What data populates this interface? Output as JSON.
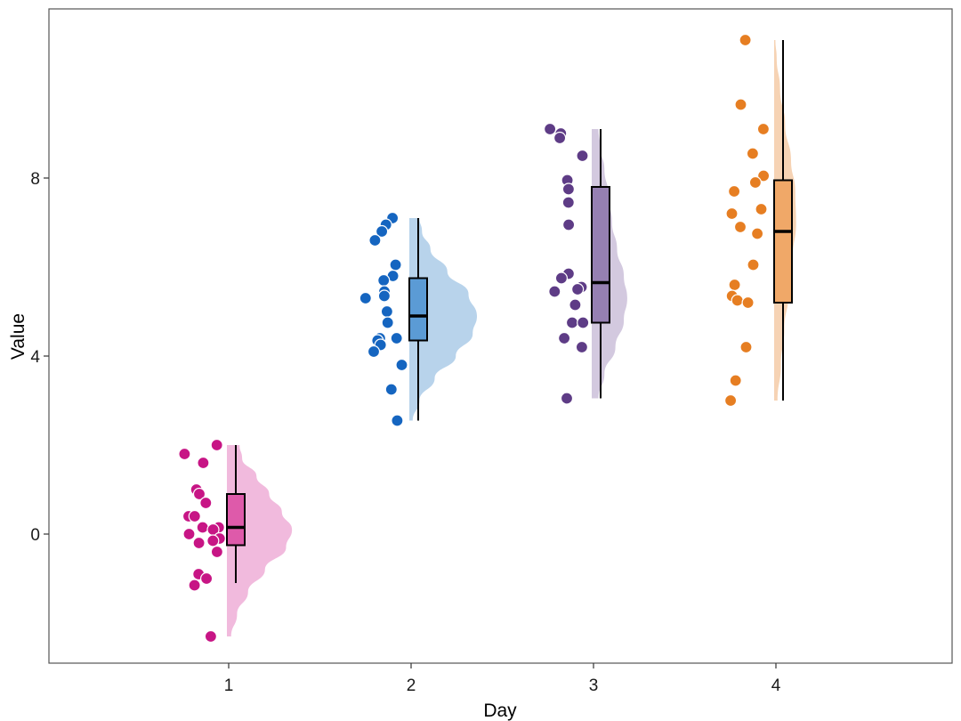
{
  "chart_data": {
    "type": "raincloud",
    "title": "",
    "xlabel": "Day",
    "ylabel": "Value",
    "ylim": [
      -2.9,
      11.8
    ],
    "yticks": [
      0,
      4,
      8
    ],
    "categories": [
      "1",
      "2",
      "3",
      "4"
    ],
    "grid": false,
    "series": [
      {
        "category": "1",
        "color": "#C71585",
        "box_fill": "#DE5AAA",
        "violin_fill": "#F1BADD",
        "box": {
          "min": -1.1,
          "q1": -0.25,
          "median": 0.15,
          "q3": 0.9,
          "max": 2.0
        },
        "points": [
          2.0,
          1.8,
          1.6,
          1.0,
          0.9,
          0.7,
          0.4,
          0.4,
          0.15,
          0.15,
          0.1,
          0.0,
          -0.1,
          -0.15,
          -0.2,
          -0.4,
          -0.9,
          -1.0,
          -1.15,
          -2.3
        ],
        "density": [
          {
            "y": -2.3,
            "w": 0.05
          },
          {
            "y": -1.8,
            "w": 0.12
          },
          {
            "y": -1.3,
            "w": 0.25
          },
          {
            "y": -0.8,
            "w": 0.45
          },
          {
            "y": -0.3,
            "w": 0.7
          },
          {
            "y": 0.1,
            "w": 0.77
          },
          {
            "y": 0.5,
            "w": 0.65
          },
          {
            "y": 0.9,
            "w": 0.5
          },
          {
            "y": 1.3,
            "w": 0.35
          },
          {
            "y": 1.7,
            "w": 0.18
          },
          {
            "y": 2.0,
            "w": 0.15
          }
        ]
      },
      {
        "category": "2",
        "color": "#1565C0",
        "box_fill": "#5B9BD5",
        "violin_fill": "#B8D3EB",
        "box": {
          "min": 2.55,
          "q1": 4.35,
          "median": 4.9,
          "q3": 5.75,
          "max": 7.1
        },
        "points": [
          7.1,
          6.95,
          6.8,
          6.6,
          6.05,
          5.8,
          5.7,
          5.45,
          5.35,
          5.3,
          5.0,
          4.75,
          4.4,
          4.4,
          4.35,
          4.25,
          4.1,
          3.8,
          3.25,
          2.55
        ],
        "density": [
          {
            "y": 2.55,
            "w": 0.04
          },
          {
            "y": 3.0,
            "w": 0.12
          },
          {
            "y": 3.5,
            "w": 0.3
          },
          {
            "y": 4.0,
            "w": 0.55
          },
          {
            "y": 4.5,
            "w": 0.75
          },
          {
            "y": 4.9,
            "w": 0.8
          },
          {
            "y": 5.4,
            "w": 0.7
          },
          {
            "y": 5.9,
            "w": 0.45
          },
          {
            "y": 6.4,
            "w": 0.25
          },
          {
            "y": 6.8,
            "w": 0.15
          },
          {
            "y": 7.1,
            "w": 0.12
          }
        ]
      },
      {
        "category": "3",
        "color": "#5E3C86",
        "box_fill": "#9680B2",
        "violin_fill": "#D3C9DF",
        "box": {
          "min": 3.05,
          "q1": 4.75,
          "median": 5.65,
          "q3": 7.8,
          "max": 9.1
        },
        "points": [
          9.1,
          9.0,
          8.9,
          8.5,
          7.95,
          7.75,
          7.45,
          6.95,
          5.85,
          5.75,
          5.55,
          5.5,
          5.45,
          5.15,
          4.75,
          4.75,
          4.4,
          4.2,
          3.05,
          3.05
        ],
        "density": [
          {
            "y": 3.05,
            "w": 0.08
          },
          {
            "y": 3.6,
            "w": 0.15
          },
          {
            "y": 4.2,
            "w": 0.28
          },
          {
            "y": 4.8,
            "w": 0.38
          },
          {
            "y": 5.3,
            "w": 0.42
          },
          {
            "y": 5.8,
            "w": 0.38
          },
          {
            "y": 6.4,
            "w": 0.3
          },
          {
            "y": 7.0,
            "w": 0.24
          },
          {
            "y": 7.6,
            "w": 0.2
          },
          {
            "y": 8.2,
            "w": 0.15
          },
          {
            "y": 8.7,
            "w": 0.1
          },
          {
            "y": 9.1,
            "w": 0.08
          }
        ]
      },
      {
        "category": "4",
        "color": "#E67E22",
        "box_fill": "#F0A868",
        "violin_fill": "#F6D3B4",
        "box": {
          "min": 3.0,
          "q1": 5.2,
          "median": 6.8,
          "q3": 7.95,
          "max": 11.1
        },
        "points": [
          11.1,
          9.65,
          9.1,
          8.55,
          8.05,
          7.9,
          7.7,
          7.3,
          7.2,
          6.9,
          6.75,
          6.05,
          5.6,
          5.35,
          5.25,
          5.2,
          4.2,
          3.45,
          3.0
        ],
        "density": [
          {
            "y": 3.0,
            "w": 0.04
          },
          {
            "y": 3.8,
            "w": 0.08
          },
          {
            "y": 4.6,
            "w": 0.12
          },
          {
            "y": 5.4,
            "w": 0.17
          },
          {
            "y": 6.2,
            "w": 0.22
          },
          {
            "y": 7.0,
            "w": 0.26
          },
          {
            "y": 7.7,
            "w": 0.25
          },
          {
            "y": 8.4,
            "w": 0.2
          },
          {
            "y": 9.2,
            "w": 0.13
          },
          {
            "y": 10.0,
            "w": 0.07
          },
          {
            "y": 10.7,
            "w": 0.03
          },
          {
            "y": 11.1,
            "w": 0.015
          }
        ]
      }
    ]
  }
}
